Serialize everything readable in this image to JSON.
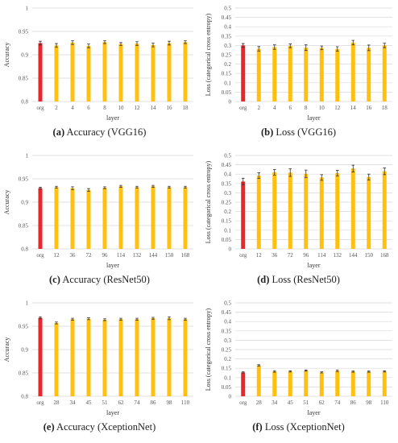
{
  "colors": {
    "baseline": "#e8262b",
    "layer": "#ffc010"
  },
  "chart_data": [
    {
      "id": "a",
      "type": "bar",
      "caption_letter": "(a)",
      "caption_rest": " Accuracy (VGG16)",
      "xlabel": "layer",
      "ylabel": "Accuracy",
      "ylim": [
        0.8,
        1
      ],
      "yticks": [
        "0.8",
        "0.85",
        "0.9",
        "0.95",
        "1"
      ],
      "ystep": 0.05,
      "categories": [
        "org",
        "2",
        "4",
        "6",
        "8",
        "10",
        "12",
        "14",
        "16",
        "18"
      ],
      "values": [
        0.925,
        0.92,
        0.926,
        0.919,
        0.927,
        0.923,
        0.924,
        0.921,
        0.925,
        0.927
      ],
      "errors": [
        0.004,
        0.004,
        0.004,
        0.004,
        0.003,
        0.003,
        0.004,
        0.004,
        0.004,
        0.003
      ]
    },
    {
      "id": "b",
      "type": "bar",
      "caption_letter": "(b)",
      "caption_rest": " Loss (VGG16)",
      "xlabel": "layer",
      "ylabel": "Loss (categorical cross entropy)",
      "ylim": [
        0,
        0.5
      ],
      "yticks": [
        "0",
        "0.05",
        "0.1",
        "0.15",
        "0.2",
        "0.25",
        "0.3",
        "0.35",
        "0.4",
        "0.45",
        "0.5"
      ],
      "ystep": 0.05,
      "categories": [
        "org",
        "2",
        "4",
        "6",
        "8",
        "10",
        "12",
        "14",
        "16",
        "18"
      ],
      "values": [
        0.3,
        0.282,
        0.291,
        0.298,
        0.288,
        0.287,
        0.281,
        0.315,
        0.287,
        0.3
      ],
      "errors": [
        0.01,
        0.012,
        0.012,
        0.01,
        0.015,
        0.01,
        0.012,
        0.012,
        0.015,
        0.012
      ]
    },
    {
      "id": "c",
      "type": "bar",
      "caption_letter": "(c)",
      "caption_rest": " Accuracy (ResNet50)",
      "xlabel": "layer",
      "ylabel": "Accuracy",
      "ylim": [
        0.8,
        1
      ],
      "yticks": [
        "0.8",
        "0.85",
        "0.9",
        "0.95",
        "1"
      ],
      "ystep": 0.05,
      "categories": [
        "org",
        "12",
        "36",
        "72",
        "96",
        "114",
        "132",
        "144",
        "150",
        "168"
      ],
      "values": [
        0.93,
        0.932,
        0.93,
        0.926,
        0.931,
        0.934,
        0.932,
        0.934,
        0.932,
        0.932
      ],
      "errors": [
        0.002,
        0.002,
        0.003,
        0.003,
        0.002,
        0.002,
        0.002,
        0.002,
        0.002,
        0.002
      ]
    },
    {
      "id": "d",
      "type": "bar",
      "caption_letter": "(d)",
      "caption_rest": " Loss (ResNet50)",
      "xlabel": "layer",
      "ylabel": "Loss (categorical cross entropy)",
      "ylim": [
        0,
        0.5
      ],
      "yticks": [
        "0",
        "0.05",
        "0.1",
        "0.15",
        "0.2",
        "0.25",
        "0.3",
        "0.35",
        "0.4",
        "0.45",
        "0.5"
      ],
      "ystep": 0.05,
      "categories": [
        "org",
        "12",
        "36",
        "72",
        "96",
        "114",
        "132",
        "144",
        "150",
        "168"
      ],
      "values": [
        0.36,
        0.392,
        0.41,
        0.408,
        0.402,
        0.382,
        0.405,
        0.43,
        0.384,
        0.415
      ],
      "errors": [
        0.018,
        0.015,
        0.015,
        0.02,
        0.02,
        0.015,
        0.015,
        0.018,
        0.016,
        0.018
      ]
    },
    {
      "id": "e",
      "type": "bar",
      "caption_letter": "(e)",
      "caption_rest": " Accuracy (XceptionNet)",
      "xlabel": "layer",
      "ylabel": "Accuracy",
      "ylim": [
        0.8,
        1
      ],
      "yticks": [
        "0.8",
        "0.85",
        "0.9",
        "0.95",
        "1"
      ],
      "ystep": 0.05,
      "categories": [
        "org",
        "28",
        "34",
        "45",
        "51",
        "62",
        "74",
        "86",
        "98",
        "110"
      ],
      "values": [
        0.968,
        0.957,
        0.965,
        0.966,
        0.964,
        0.965,
        0.965,
        0.967,
        0.967,
        0.965
      ],
      "errors": [
        0.002,
        0.002,
        0.002,
        0.002,
        0.002,
        0.002,
        0.002,
        0.002,
        0.003,
        0.002
      ]
    },
    {
      "id": "f",
      "type": "bar",
      "caption_letter": "(f)",
      "caption_rest": " Loss (XceptionNet)",
      "xlabel": "layer",
      "ylabel": "Loss (categorical cross entropy)",
      "ylim": [
        0,
        0.5
      ],
      "yticks": [
        "0",
        "0.05",
        "0.1",
        "0.15",
        "0.2",
        "0.25",
        "0.3",
        "0.35",
        "0.4",
        "0.45",
        "0.5"
      ],
      "ystep": 0.05,
      "categories": [
        "org",
        "28",
        "34",
        "45",
        "51",
        "62",
        "74",
        "86",
        "98",
        "110"
      ],
      "values": [
        0.128,
        0.165,
        0.133,
        0.133,
        0.138,
        0.128,
        0.136,
        0.132,
        0.132,
        0.133
      ],
      "errors": [
        0.003,
        0.004,
        0.004,
        0.003,
        0.003,
        0.003,
        0.004,
        0.003,
        0.003,
        0.003
      ]
    }
  ]
}
